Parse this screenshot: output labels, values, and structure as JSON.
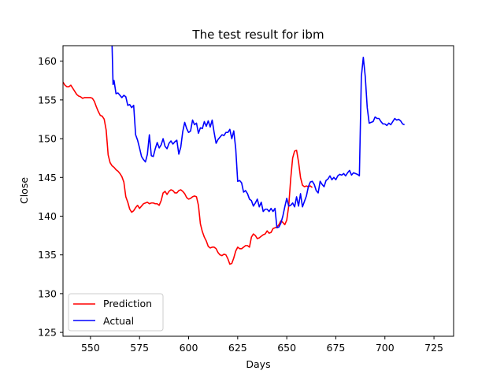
{
  "chart_data": {
    "type": "line",
    "title": "The test result for ibm",
    "xlabel": "Days",
    "ylabel": "Close",
    "xlim": [
      536,
      735
    ],
    "ylim": [
      124.5,
      162
    ],
    "xticks": [
      550,
      575,
      600,
      625,
      650,
      675,
      700,
      725
    ],
    "yticks": [
      125,
      130,
      135,
      140,
      145,
      150,
      155,
      160
    ],
    "grid": false,
    "legend": {
      "position": "lower-left",
      "entries": [
        "Prediction",
        "Actual"
      ]
    },
    "series": [
      {
        "name": "Prediction",
        "color": "#ff0000",
        "points": [
          [
            536,
            157.3
          ],
          [
            537,
            156.9
          ],
          [
            538,
            156.7
          ],
          [
            539,
            156.7
          ],
          [
            540,
            156.9
          ],
          [
            541,
            156.5
          ],
          [
            542,
            156.1
          ],
          [
            543,
            155.7
          ],
          [
            544,
            155.5
          ],
          [
            545,
            155.4
          ],
          [
            546,
            155.2
          ],
          [
            547,
            155.3
          ],
          [
            548,
            155.3
          ],
          [
            549,
            155.3
          ],
          [
            550,
            155.3
          ],
          [
            551,
            155.2
          ],
          [
            552,
            154.8
          ],
          [
            553,
            154.1
          ],
          [
            554,
            153.5
          ],
          [
            555,
            153.0
          ],
          [
            556,
            152.9
          ],
          [
            557,
            152.5
          ],
          [
            558,
            151.1
          ],
          [
            559,
            147.9
          ],
          [
            560,
            146.9
          ],
          [
            561,
            146.5
          ],
          [
            562,
            146.3
          ],
          [
            563,
            146.0
          ],
          [
            564,
            145.8
          ],
          [
            565,
            145.5
          ],
          [
            566,
            145.1
          ],
          [
            567,
            144.4
          ],
          [
            568,
            142.5
          ],
          [
            569,
            141.8
          ],
          [
            570,
            140.9
          ],
          [
            571,
            140.5
          ],
          [
            572,
            140.7
          ],
          [
            573,
            141.1
          ],
          [
            574,
            141.4
          ],
          [
            575,
            141.0
          ],
          [
            576,
            141.3
          ],
          [
            577,
            141.6
          ],
          [
            578,
            141.7
          ],
          [
            579,
            141.8
          ],
          [
            580,
            141.6
          ],
          [
            581,
            141.7
          ],
          [
            582,
            141.7
          ],
          [
            583,
            141.6
          ],
          [
            584,
            141.6
          ],
          [
            585,
            141.4
          ],
          [
            586,
            142.0
          ],
          [
            587,
            143.0
          ],
          [
            588,
            143.2
          ],
          [
            589,
            142.8
          ],
          [
            590,
            143.2
          ],
          [
            591,
            143.4
          ],
          [
            592,
            143.3
          ],
          [
            593,
            143.0
          ],
          [
            594,
            143.0
          ],
          [
            595,
            143.3
          ],
          [
            596,
            143.4
          ],
          [
            597,
            143.2
          ],
          [
            598,
            142.9
          ],
          [
            599,
            142.4
          ],
          [
            600,
            142.2
          ],
          [
            601,
            142.3
          ],
          [
            602,
            142.5
          ],
          [
            603,
            142.6
          ],
          [
            604,
            142.5
          ],
          [
            605,
            141.4
          ],
          [
            606,
            139.0
          ],
          [
            607,
            138.0
          ],
          [
            608,
            137.3
          ],
          [
            609,
            136.8
          ],
          [
            610,
            136.1
          ],
          [
            611,
            135.9
          ],
          [
            612,
            136.0
          ],
          [
            613,
            136.0
          ],
          [
            614,
            135.8
          ],
          [
            615,
            135.3
          ],
          [
            616,
            135.0
          ],
          [
            617,
            134.9
          ],
          [
            618,
            135.1
          ],
          [
            619,
            135.0
          ],
          [
            620,
            134.5
          ],
          [
            621,
            133.8
          ],
          [
            622,
            133.9
          ],
          [
            623,
            134.6
          ],
          [
            624,
            135.5
          ],
          [
            625,
            136.0
          ],
          [
            626,
            135.8
          ],
          [
            627,
            135.8
          ],
          [
            628,
            136.0
          ],
          [
            629,
            136.2
          ],
          [
            630,
            136.2
          ],
          [
            631,
            136.0
          ],
          [
            632,
            137.3
          ],
          [
            633,
            137.7
          ],
          [
            634,
            137.5
          ],
          [
            635,
            137.1
          ],
          [
            636,
            137.2
          ],
          [
            637,
            137.4
          ],
          [
            638,
            137.6
          ],
          [
            639,
            137.7
          ],
          [
            640,
            138.1
          ],
          [
            641,
            137.8
          ],
          [
            642,
            137.9
          ],
          [
            643,
            138.4
          ],
          [
            644,
            138.5
          ],
          [
            645,
            138.6
          ],
          [
            646,
            138.9
          ],
          [
            647,
            139.4
          ],
          [
            648,
            139.2
          ],
          [
            649,
            138.9
          ],
          [
            650,
            139.5
          ],
          [
            651,
            141.3
          ],
          [
            652,
            144.8
          ],
          [
            653,
            147.5
          ],
          [
            654,
            148.4
          ],
          [
            655,
            148.5
          ],
          [
            656,
            147.0
          ],
          [
            657,
            145.0
          ],
          [
            658,
            144.0
          ],
          [
            659,
            143.8
          ],
          [
            660,
            143.9
          ],
          [
            661,
            143.8
          ],
          [
            662,
            143.9
          ],
          [
            663,
            143.7
          ]
        ]
      },
      {
        "name": "Actual",
        "color": "#0000ff",
        "points": [
          [
            561,
            162.0
          ],
          [
            561.5,
            157.0
          ],
          [
            562,
            157.5
          ],
          [
            563,
            155.8
          ],
          [
            564,
            155.9
          ],
          [
            565,
            155.6
          ],
          [
            566,
            155.3
          ],
          [
            567,
            155.6
          ],
          [
            568,
            155.4
          ],
          [
            569,
            154.3
          ],
          [
            570,
            154.4
          ],
          [
            571,
            154.0
          ],
          [
            572,
            154.3
          ],
          [
            573,
            150.5
          ],
          [
            574,
            149.8
          ],
          [
            575,
            148.8
          ],
          [
            576,
            147.7
          ],
          [
            577,
            147.3
          ],
          [
            578,
            147.0
          ],
          [
            579,
            148.0
          ],
          [
            580,
            150.5
          ],
          [
            581,
            147.8
          ],
          [
            582,
            147.7
          ],
          [
            583,
            148.7
          ],
          [
            584,
            149.5
          ],
          [
            585,
            148.8
          ],
          [
            586,
            149.2
          ],
          [
            587,
            150.0
          ],
          [
            588,
            149.0
          ],
          [
            589,
            148.7
          ],
          [
            590,
            149.4
          ],
          [
            591,
            149.7
          ],
          [
            592,
            149.3
          ],
          [
            593,
            149.6
          ],
          [
            594,
            149.8
          ],
          [
            595,
            148.0
          ],
          [
            596,
            148.9
          ],
          [
            597,
            150.9
          ],
          [
            598,
            152.1
          ],
          [
            599,
            151.3
          ],
          [
            600,
            150.8
          ],
          [
            601,
            151.0
          ],
          [
            602,
            152.4
          ],
          [
            603,
            151.8
          ],
          [
            604,
            152.0
          ],
          [
            605,
            150.7
          ],
          [
            606,
            151.4
          ],
          [
            607,
            151.3
          ],
          [
            608,
            152.2
          ],
          [
            609,
            151.6
          ],
          [
            610,
            152.3
          ],
          [
            611,
            151.5
          ],
          [
            612,
            152.4
          ],
          [
            613,
            150.8
          ],
          [
            614,
            149.4
          ],
          [
            615,
            149.9
          ],
          [
            616,
            150.2
          ],
          [
            617,
            150.5
          ],
          [
            618,
            150.4
          ],
          [
            619,
            150.8
          ],
          [
            620,
            150.8
          ],
          [
            621,
            151.2
          ],
          [
            622,
            150.0
          ],
          [
            623,
            151.0
          ],
          [
            624,
            148.7
          ],
          [
            625,
            144.5
          ],
          [
            626,
            144.6
          ],
          [
            627,
            144.3
          ],
          [
            628,
            143.1
          ],
          [
            629,
            143.3
          ],
          [
            630,
            142.9
          ],
          [
            631,
            142.2
          ],
          [
            632,
            142.0
          ],
          [
            633,
            141.3
          ],
          [
            634,
            141.7
          ],
          [
            635,
            142.2
          ],
          [
            636,
            141.2
          ],
          [
            637,
            141.8
          ],
          [
            638,
            140.6
          ],
          [
            639,
            140.9
          ],
          [
            640,
            140.9
          ],
          [
            641,
            140.6
          ],
          [
            642,
            141.0
          ],
          [
            643,
            140.6
          ],
          [
            644,
            141.0
          ],
          [
            645,
            138.5
          ],
          [
            646,
            138.6
          ],
          [
            647,
            139.1
          ],
          [
            648,
            140.0
          ],
          [
            649,
            141.2
          ],
          [
            650,
            142.3
          ],
          [
            651,
            141.3
          ],
          [
            652,
            141.4
          ],
          [
            653,
            141.7
          ],
          [
            654,
            141.2
          ],
          [
            655,
            142.5
          ],
          [
            656,
            141.3
          ],
          [
            657,
            142.9
          ],
          [
            658,
            141.2
          ],
          [
            659,
            141.9
          ],
          [
            660,
            142.6
          ],
          [
            661,
            143.8
          ],
          [
            662,
            144.4
          ],
          [
            663,
            144.5
          ],
          [
            664,
            144.1
          ],
          [
            665,
            143.3
          ],
          [
            666,
            143.0
          ],
          [
            667,
            144.5
          ],
          [
            668,
            144.1
          ],
          [
            669,
            143.8
          ],
          [
            670,
            144.6
          ],
          [
            671,
            144.8
          ],
          [
            672,
            145.2
          ],
          [
            673,
            144.7
          ],
          [
            674,
            145.0
          ],
          [
            675,
            144.7
          ],
          [
            676,
            145.2
          ],
          [
            677,
            145.4
          ],
          [
            678,
            145.3
          ],
          [
            679,
            145.5
          ],
          [
            680,
            145.2
          ],
          [
            681,
            145.6
          ],
          [
            682,
            145.9
          ],
          [
            683,
            145.3
          ],
          [
            684,
            145.6
          ],
          [
            685,
            145.5
          ],
          [
            686,
            145.4
          ],
          [
            687,
            145.2
          ],
          [
            688,
            158.0
          ],
          [
            689,
            160.5
          ],
          [
            690,
            158.0
          ],
          [
            691,
            154.0
          ],
          [
            692,
            152.0
          ],
          [
            693,
            152.1
          ],
          [
            694,
            152.2
          ],
          [
            695,
            152.8
          ],
          [
            696,
            152.6
          ],
          [
            697,
            152.6
          ],
          [
            698,
            152.2
          ],
          [
            699,
            151.9
          ],
          [
            700,
            151.9
          ],
          [
            701,
            151.7
          ],
          [
            702,
            152.0
          ],
          [
            703,
            151.8
          ],
          [
            704,
            152.2
          ],
          [
            705,
            152.6
          ],
          [
            706,
            152.4
          ],
          [
            707,
            152.5
          ],
          [
            708,
            152.3
          ],
          [
            709,
            151.9
          ],
          [
            710,
            151.8
          ]
        ]
      }
    ]
  }
}
